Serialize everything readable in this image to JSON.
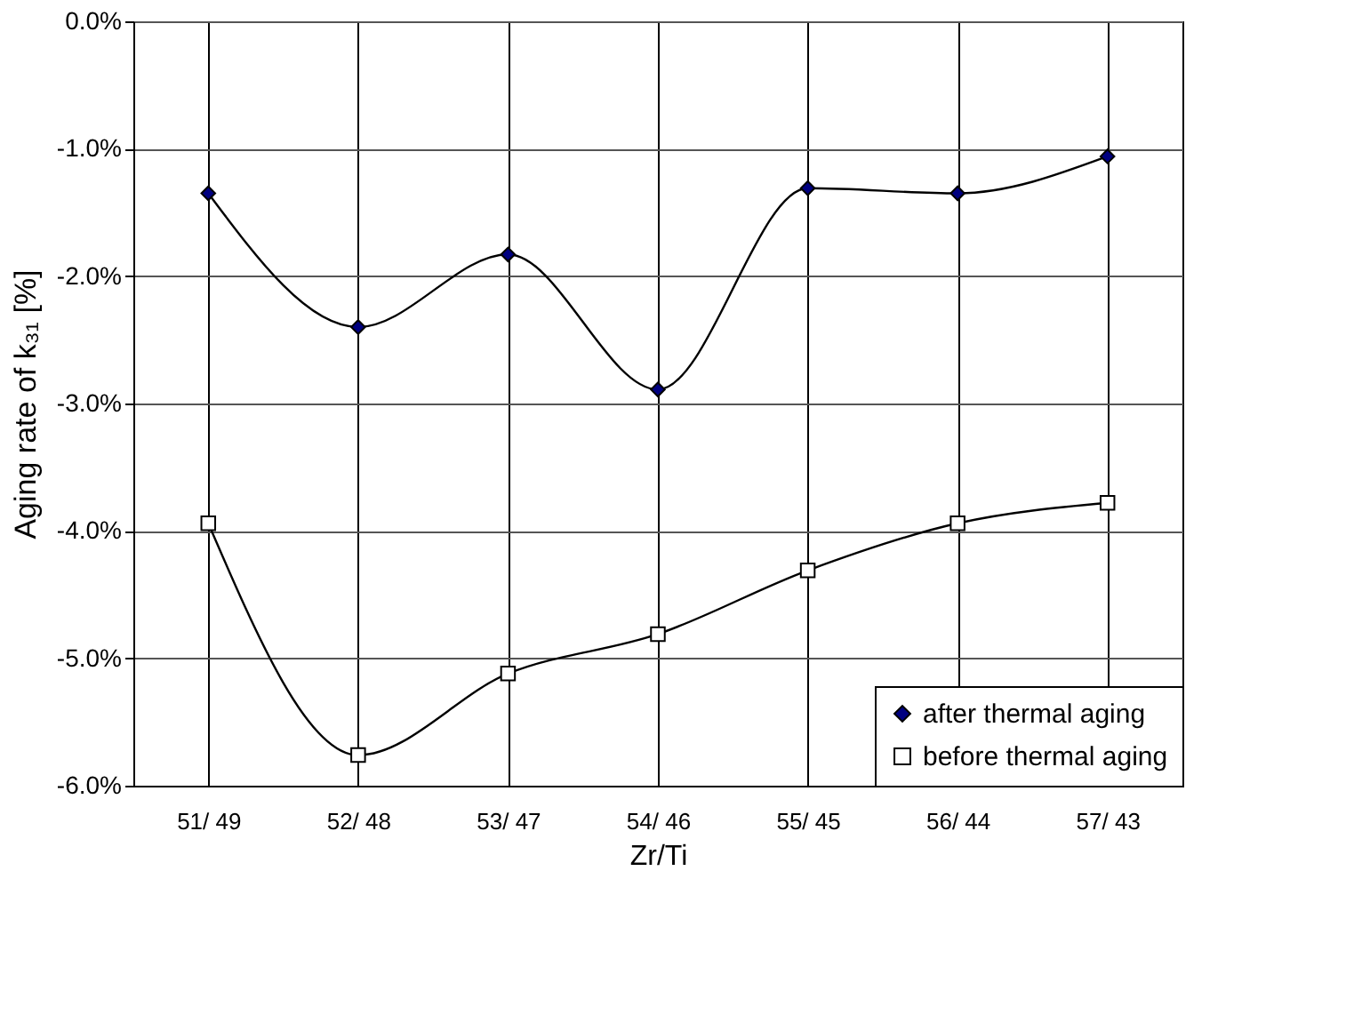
{
  "chart_data": {
    "type": "line",
    "xlabel": "Zr/Ti",
    "ylabel": "Aging rate of k₃₁ [%]",
    "categories": [
      "51/ 49",
      "52/ 48",
      "53/ 47",
      "54/ 46",
      "55/ 45",
      "56/ 44",
      "57/ 43"
    ],
    "series": [
      {
        "name": "after thermal aging",
        "color": "#000080",
        "marker": "diamond",
        "values": [
          -1.35,
          -2.4,
          -1.83,
          -2.89,
          -1.31,
          -1.35,
          -1.06
        ]
      },
      {
        "name": "before thermal aging",
        "color": "#ffffff",
        "marker": "square",
        "values": [
          -3.94,
          -5.76,
          -5.12,
          -4.81,
          -4.31,
          -3.94,
          -3.78
        ]
      }
    ],
    "ylim": [
      -6,
      0
    ],
    "yticks": [
      {
        "value": -6,
        "label": "-6.0%"
      },
      {
        "value": -5,
        "label": "-5.0%"
      },
      {
        "value": -4,
        "label": "-4.0%"
      },
      {
        "value": -3,
        "label": "-3.0%"
      },
      {
        "value": -2,
        "label": "-2.0%"
      },
      {
        "value": -1,
        "label": "-1.0%"
      },
      {
        "value": 0,
        "label": "0.0%"
      }
    ],
    "grid": true,
    "legend": "bottom right",
    "line_style": "solid"
  }
}
